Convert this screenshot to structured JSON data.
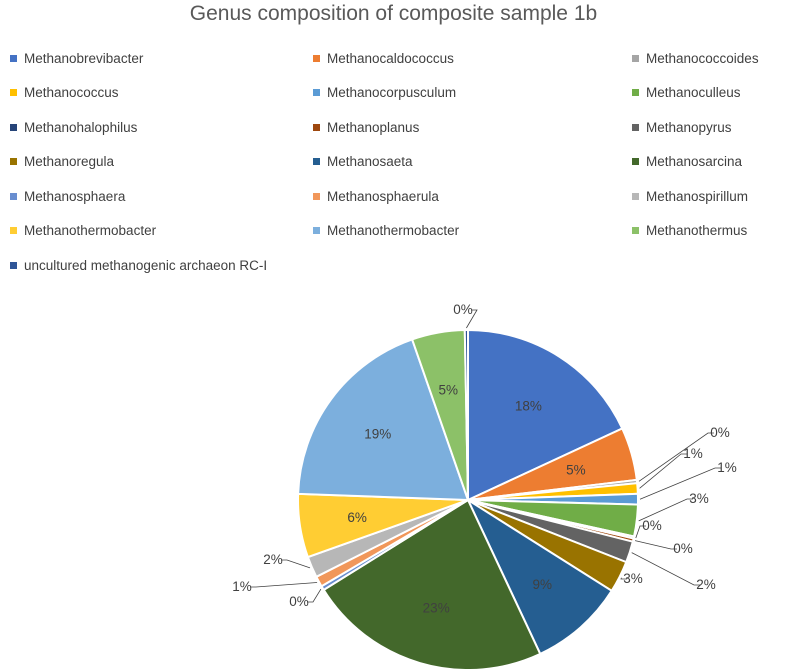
{
  "chart_data": {
    "type": "pie",
    "title": "Genus composition of composite sample 1b",
    "legend_position": "top",
    "series": [
      {
        "name": "Methanobrevibacter",
        "value": 18,
        "label": "18%",
        "color": "#4472C4"
      },
      {
        "name": "Methanocaldococcus",
        "value": 5,
        "label": "5%",
        "color": "#ED7D31"
      },
      {
        "name": "Methanococcoides",
        "value": 0.3,
        "label": "0%",
        "color": "#A5A5A5"
      },
      {
        "name": "Methanococcus",
        "value": 1,
        "label": "1%",
        "color": "#FFC000"
      },
      {
        "name": "Methanocorpusculum",
        "value": 1,
        "label": "1%",
        "color": "#5B9BD5"
      },
      {
        "name": "Methanoculleus",
        "value": 3,
        "label": "3%",
        "color": "#70AD47"
      },
      {
        "name": "Methanohalophilus",
        "value": 0.2,
        "label": "0%",
        "color": "#264478"
      },
      {
        "name": "Methanoplanus",
        "value": 0.3,
        "label": "0%",
        "color": "#9E480E"
      },
      {
        "name": "Methanopyrus",
        "value": 2,
        "label": "2%",
        "color": "#636363"
      },
      {
        "name": "Methanoregula",
        "value": 3,
        "label": "3%",
        "color": "#997300"
      },
      {
        "name": "Methanosaeta",
        "value": 9,
        "label": "9%",
        "color": "#255E91"
      },
      {
        "name": "Methanosarcina",
        "value": 23,
        "label": "23%",
        "color": "#43682B"
      },
      {
        "name": "Methanosphaera",
        "value": 0.4,
        "label": "0%",
        "color": "#698ED0"
      },
      {
        "name": "Methanosphaerula",
        "value": 1,
        "label": "1%",
        "color": "#F1975A"
      },
      {
        "name": "Methanospirillum",
        "value": 2,
        "label": "2%",
        "color": "#B7B7B7"
      },
      {
        "name": "Methanothermobacter",
        "value": 6,
        "label": "6%",
        "color": "#FFCD33"
      },
      {
        "name": "Methanothermobacter",
        "value": 19,
        "label": "19%",
        "color": "#7CAFDD"
      },
      {
        "name": "Methanothermus",
        "value": 5,
        "label": "5%",
        "color": "#8CC168"
      },
      {
        "name": "uncultured methanogenic archaeon RC-I",
        "value": 0.3,
        "label": "0%",
        "color": "#2E5597"
      }
    ]
  }
}
